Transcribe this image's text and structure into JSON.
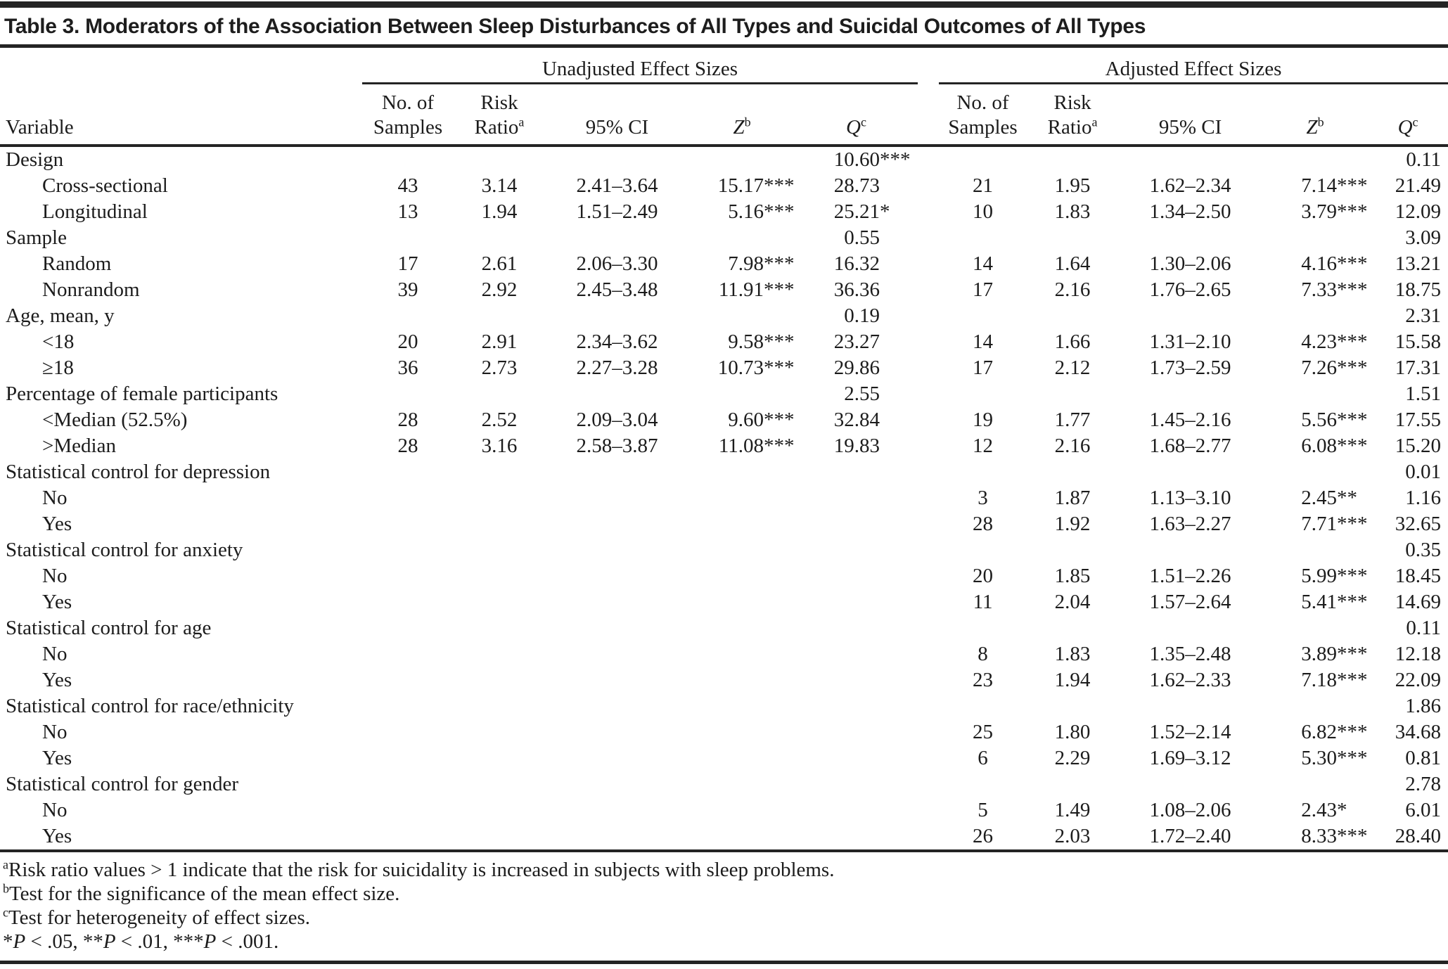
{
  "title": "Table 3. Moderators of the Association Between Sleep Disturbances of All Types and Suicidal Outcomes of All Types",
  "header": {
    "variable_label": "Variable",
    "groups": [
      {
        "label": "Unadjusted Effect Sizes"
      },
      {
        "label": "Adjusted Effect Sizes"
      }
    ],
    "columns": [
      {
        "key": "samples",
        "lines": [
          "No. of",
          "Samples"
        ]
      },
      {
        "key": "ratio",
        "lines": [
          "Risk",
          "Ratio"
        ],
        "sup": "a"
      },
      {
        "key": "ci",
        "lines": [
          "95% CI"
        ]
      },
      {
        "key": "z",
        "lines": [
          "Z"
        ],
        "sup": "b",
        "italic": true
      },
      {
        "key": "q",
        "lines": [
          "Q"
        ],
        "sup": "c",
        "italic": true
      }
    ]
  },
  "rows": [
    {
      "label": "Design",
      "indent": false,
      "u": [
        "",
        "",
        "",
        "",
        "10.60***"
      ],
      "a": [
        "",
        "",
        "",
        "",
        "0.11"
      ]
    },
    {
      "label": "Cross-sectional",
      "indent": true,
      "u": [
        "43",
        "3.14",
        "2.41–3.64",
        "15.17***",
        "28.73"
      ],
      "a": [
        "21",
        "1.95",
        "1.62–2.34",
        "7.14***",
        "21.49"
      ]
    },
    {
      "label": "Longitudinal",
      "indent": true,
      "u": [
        "13",
        "1.94",
        "1.51–2.49",
        "5.16***",
        "25.21*"
      ],
      "a": [
        "10",
        "1.83",
        "1.34–2.50",
        "3.79***",
        "12.09"
      ]
    },
    {
      "label": "Sample",
      "indent": false,
      "u": [
        "",
        "",
        "",
        "",
        "0.55"
      ],
      "a": [
        "",
        "",
        "",
        "",
        "3.09"
      ]
    },
    {
      "label": "Random",
      "indent": true,
      "u": [
        "17",
        "2.61",
        "2.06–3.30",
        "7.98***",
        "16.32"
      ],
      "a": [
        "14",
        "1.64",
        "1.30–2.06",
        "4.16***",
        "13.21"
      ]
    },
    {
      "label": "Nonrandom",
      "indent": true,
      "u": [
        "39",
        "2.92",
        "2.45–3.48",
        "11.91***",
        "36.36"
      ],
      "a": [
        "17",
        "2.16",
        "1.76–2.65",
        "7.33***",
        "18.75"
      ]
    },
    {
      "label": "Age, mean, y",
      "indent": false,
      "u": [
        "",
        "",
        "",
        "",
        "0.19"
      ],
      "a": [
        "",
        "",
        "",
        "",
        "2.31"
      ]
    },
    {
      "label": "<18",
      "indent": true,
      "u": [
        "20",
        "2.91",
        "2.34–3.62",
        "9.58***",
        "23.27"
      ],
      "a": [
        "14",
        "1.66",
        "1.31–2.10",
        "4.23***",
        "15.58"
      ]
    },
    {
      "label": "≥18",
      "indent": true,
      "u": [
        "36",
        "2.73",
        "2.27–3.28",
        "10.73***",
        "29.86"
      ],
      "a": [
        "17",
        "2.12",
        "1.73–2.59",
        "7.26***",
        "17.31"
      ]
    },
    {
      "label": "Percentage of female participants",
      "indent": false,
      "u": [
        "",
        "",
        "",
        "",
        "2.55"
      ],
      "a": [
        "",
        "",
        "",
        "",
        "1.51"
      ]
    },
    {
      "label": "<Median (52.5%)",
      "indent": true,
      "u": [
        "28",
        "2.52",
        "2.09–3.04",
        "9.60***",
        "32.84"
      ],
      "a": [
        "19",
        "1.77",
        "1.45–2.16",
        "5.56***",
        "17.55"
      ]
    },
    {
      "label": ">Median",
      "indent": true,
      "u": [
        "28",
        "3.16",
        "2.58–3.87",
        "11.08***",
        "19.83"
      ],
      "a": [
        "12",
        "2.16",
        "1.68–2.77",
        "6.08***",
        "15.20"
      ]
    },
    {
      "label": "Statistical control for depression",
      "indent": false,
      "u": [
        "",
        "",
        "",
        "",
        ""
      ],
      "a": [
        "",
        "",
        "",
        "",
        "0.01"
      ]
    },
    {
      "label": "No",
      "indent": true,
      "u": [
        "",
        "",
        "",
        "",
        ""
      ],
      "a": [
        "3",
        "1.87",
        "1.13–3.10",
        "2.45**",
        "1.16"
      ]
    },
    {
      "label": "Yes",
      "indent": true,
      "u": [
        "",
        "",
        "",
        "",
        ""
      ],
      "a": [
        "28",
        "1.92",
        "1.63–2.27",
        "7.71***",
        "32.65"
      ]
    },
    {
      "label": "Statistical control for anxiety",
      "indent": false,
      "u": [
        "",
        "",
        "",
        "",
        ""
      ],
      "a": [
        "",
        "",
        "",
        "",
        "0.35"
      ]
    },
    {
      "label": "No",
      "indent": true,
      "u": [
        "",
        "",
        "",
        "",
        ""
      ],
      "a": [
        "20",
        "1.85",
        "1.51–2.26",
        "5.99***",
        "18.45"
      ]
    },
    {
      "label": "Yes",
      "indent": true,
      "u": [
        "",
        "",
        "",
        "",
        ""
      ],
      "a": [
        "11",
        "2.04",
        "1.57–2.64",
        "5.41***",
        "14.69"
      ]
    },
    {
      "label": "Statistical control for age",
      "indent": false,
      "u": [
        "",
        "",
        "",
        "",
        ""
      ],
      "a": [
        "",
        "",
        "",
        "",
        "0.11"
      ]
    },
    {
      "label": "No",
      "indent": true,
      "u": [
        "",
        "",
        "",
        "",
        ""
      ],
      "a": [
        "8",
        "1.83",
        "1.35–2.48",
        "3.89***",
        "12.18"
      ]
    },
    {
      "label": "Yes",
      "indent": true,
      "u": [
        "",
        "",
        "",
        "",
        ""
      ],
      "a": [
        "23",
        "1.94",
        "1.62–2.33",
        "7.18***",
        "22.09"
      ]
    },
    {
      "label": "Statistical control for race/ethnicity",
      "indent": false,
      "u": [
        "",
        "",
        "",
        "",
        ""
      ],
      "a": [
        "",
        "",
        "",
        "",
        "1.86"
      ]
    },
    {
      "label": "No",
      "indent": true,
      "u": [
        "",
        "",
        "",
        "",
        ""
      ],
      "a": [
        "25",
        "1.80",
        "1.52–2.14",
        "6.82***",
        "34.68"
      ]
    },
    {
      "label": "Yes",
      "indent": true,
      "u": [
        "",
        "",
        "",
        "",
        ""
      ],
      "a": [
        "6",
        "2.29",
        "1.69–3.12",
        "5.30***",
        "0.81"
      ]
    },
    {
      "label": "Statistical control for gender",
      "indent": false,
      "u": [
        "",
        "",
        "",
        "",
        ""
      ],
      "a": [
        "",
        "",
        "",
        "",
        "2.78"
      ]
    },
    {
      "label": "No",
      "indent": true,
      "u": [
        "",
        "",
        "",
        "",
        ""
      ],
      "a": [
        "5",
        "1.49",
        "1.08–2.06",
        "2.43*",
        "6.01"
      ]
    },
    {
      "label": "Yes",
      "indent": true,
      "u": [
        "",
        "",
        "",
        "",
        ""
      ],
      "a": [
        "26",
        "2.03",
        "1.72–2.40",
        "8.33***",
        "28.40"
      ]
    }
  ],
  "footnotes": {
    "notes": [
      {
        "sup": "a",
        "text": "Risk ratio values > 1 indicate that the risk for suicidality is increased in subjects with sleep problems."
      },
      {
        "sup": "b",
        "text": "Test for the significance of the mean effect size."
      },
      {
        "sup": "c",
        "text": "Test for heterogeneity of effect sizes."
      }
    ],
    "significance": [
      {
        "text": "*"
      },
      {
        "text": "P",
        "italic": true
      },
      {
        "text": " < .05, "
      },
      {
        "text": "**"
      },
      {
        "text": "P",
        "italic": true
      },
      {
        "text": " < .01, "
      },
      {
        "text": "***"
      },
      {
        "text": "P",
        "italic": true
      },
      {
        "text": " < .001."
      }
    ]
  }
}
